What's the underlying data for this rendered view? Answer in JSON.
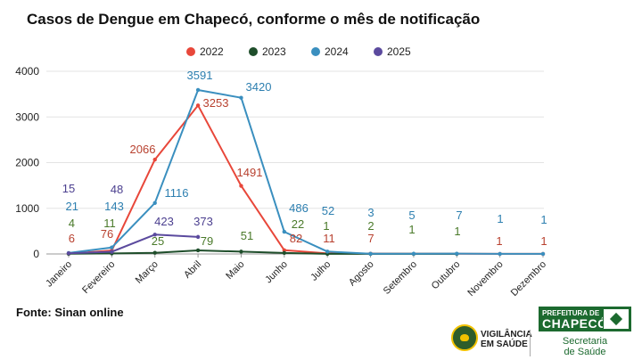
{
  "title": "Casos de Dengue em Chapecó, conforme o mês de notificação",
  "source": "Fonte: Sinan online",
  "logos": {
    "vigilancia_line1": "VIGILÂNCIA",
    "vigilancia_line2": "EM SAÚDE",
    "prefeitura_line1": "PREFEITURA DE",
    "prefeitura_line2": "CHAPECÓ",
    "secretaria_line1": "Secretaria",
    "secretaria_line2": "de Saúde"
  },
  "chart_data": {
    "type": "line",
    "title": "Casos de Dengue em Chapecó, conforme o mês de notificação",
    "xlabel": "",
    "ylabel": "",
    "ylim": [
      0,
      4000
    ],
    "yticks": [
      0,
      1000,
      2000,
      3000,
      4000
    ],
    "grid": true,
    "legend": "top",
    "categories": [
      "Janeiro",
      "Fevereiro",
      "Março",
      "Abril",
      "Maio",
      "Junho",
      "Julho",
      "Agosto",
      "Setembro",
      "Outubro",
      "Novembro",
      "Dezembro"
    ],
    "series": [
      {
        "name": "2022",
        "color": "#e8473a",
        "labelColor": "#b8412f",
        "values": [
          6,
          76,
          2066,
          3253,
          1491,
          82,
          11,
          7,
          null,
          null,
          1,
          1
        ],
        "labels": [
          "6",
          "76",
          "2066",
          "3253",
          "1491",
          "82",
          "11",
          "7",
          "",
          "",
          "1",
          "1"
        ]
      },
      {
        "name": "2023",
        "color": "#1f4e2b",
        "labelColor": "#4a7a2a",
        "values": [
          4,
          11,
          25,
          79,
          51,
          22,
          1,
          2,
          1,
          1,
          null,
          null
        ],
        "labels": [
          "4",
          "11",
          "25",
          "79",
          "51",
          "22",
          "1",
          "2",
          "1",
          "1",
          "",
          ""
        ]
      },
      {
        "name": "2024",
        "color": "#3a8fbf",
        "labelColor": "#2d7fb0",
        "values": [
          21,
          143,
          1116,
          3591,
          3420,
          486,
          52,
          3,
          5,
          7,
          1,
          1
        ],
        "labels": [
          "21",
          "143",
          "1116",
          "3591",
          "3420",
          "486",
          "52",
          "3",
          "5",
          "7",
          "1",
          "1"
        ]
      },
      {
        "name": "2025",
        "color": "#5b4a9e",
        "labelColor": "#4b3f8f",
        "values": [
          15,
          48,
          423,
          373,
          null,
          null,
          null,
          null,
          null,
          null,
          null,
          null
        ],
        "labels": [
          "15",
          "48",
          "423",
          "373",
          "",
          "",
          "",
          "",
          "",
          "",
          "",
          ""
        ]
      }
    ]
  }
}
